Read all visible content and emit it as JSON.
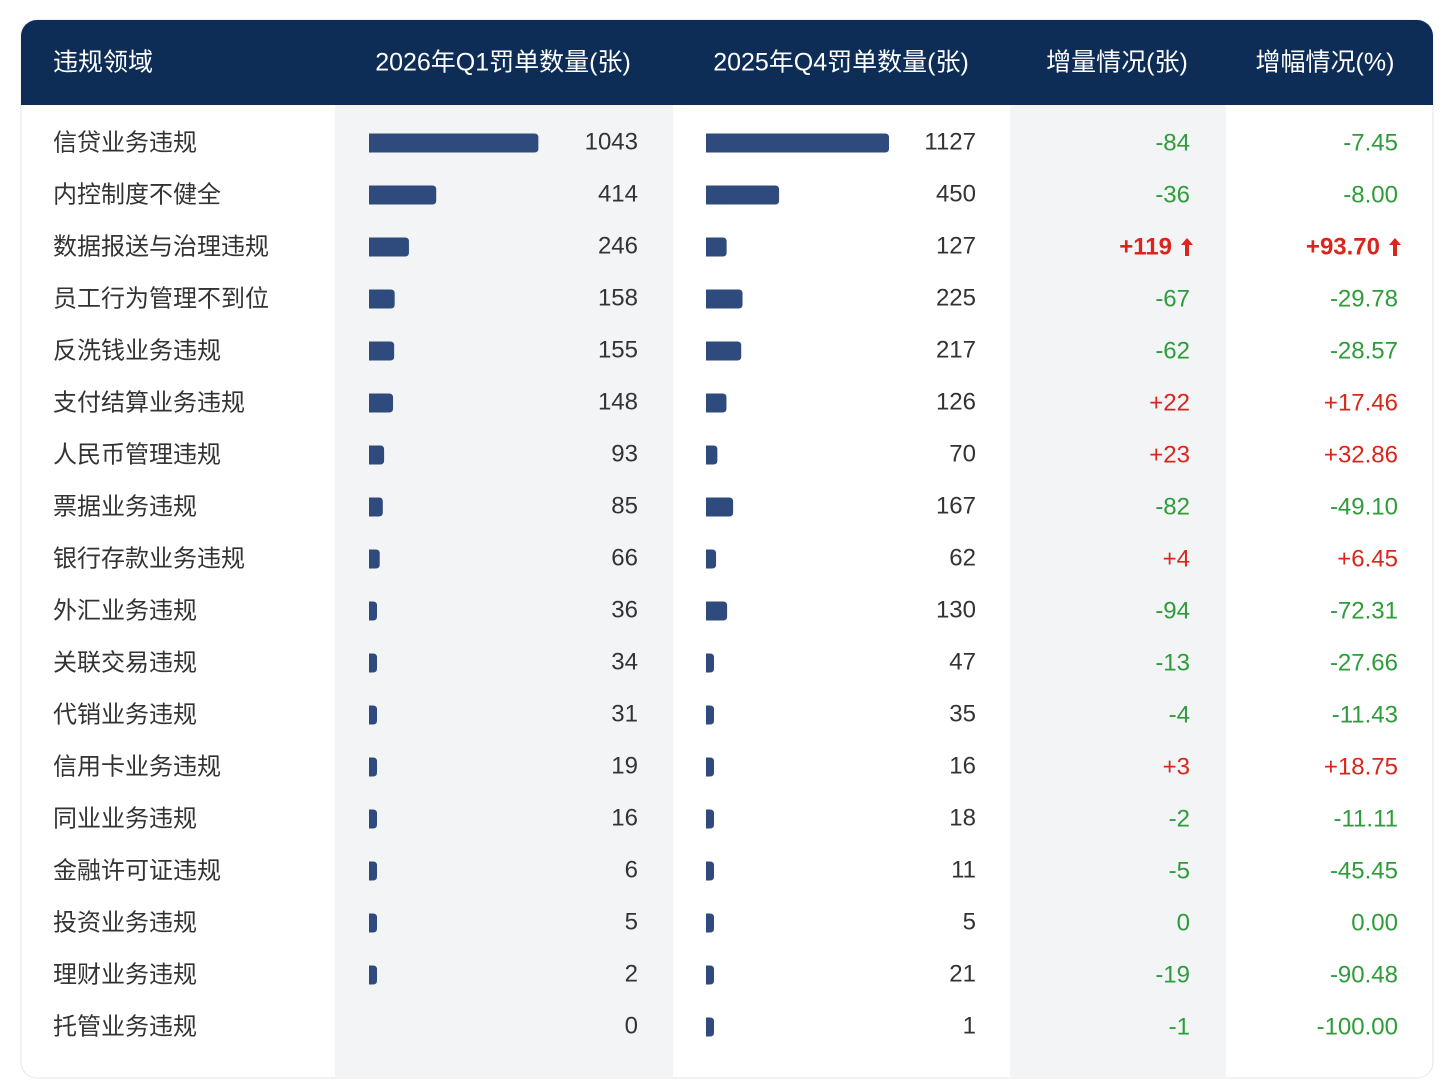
{
  "header": {
    "columns": [
      "违规领域",
      "2026年Q1罚单数量(张)",
      "2025年Q4罚单数量(张)",
      "增量情况(张)",
      "增幅情况(%)"
    ]
  },
  "table": {
    "rows": [
      [
        "信贷业务违规",
        1043,
        1127,
        "-84",
        "-7.45"
      ],
      [
        "内控制度不健全",
        414,
        450,
        "-36",
        "-8.00"
      ],
      [
        "数据报送与治理违规",
        246,
        127,
        "+119",
        "+93.70"
      ],
      [
        "员工行为管理不到位",
        158,
        225,
        "-67",
        "-29.78"
      ],
      [
        "反洗钱业务违规",
        155,
        217,
        "-62",
        "-28.57"
      ],
      [
        "支付结算业务违规",
        148,
        126,
        "+22",
        "+17.46"
      ],
      [
        "人民币管理违规",
        93,
        70,
        "+23",
        "+32.86"
      ],
      [
        "票据业务违规",
        85,
        167,
        "-82",
        "-49.10"
      ],
      [
        "银行存款业务违规",
        66,
        62,
        "+4",
        "+6.45"
      ],
      [
        "外汇业务违规",
        36,
        130,
        "-94",
        "-72.31"
      ],
      [
        "关联交易违规",
        34,
        47,
        "-13",
        "-27.66"
      ],
      [
        "代销业务违规",
        31,
        35,
        "-4",
        "-11.43"
      ],
      [
        "信用卡业务违规",
        19,
        16,
        "+3",
        "+18.75"
      ],
      [
        "同业业务违规",
        16,
        18,
        "-2",
        "-11.11"
      ],
      [
        "金融许可证违规",
        6,
        11,
        "-5",
        "-45.45"
      ],
      [
        "投资业务违规",
        5,
        5,
        "0",
        "0.00"
      ],
      [
        "理财业务违规",
        2,
        21,
        "-19",
        "-90.48"
      ],
      [
        "托管业务违规",
        0,
        1,
        "-1",
        "-100.00"
      ]
    ]
  }
}
